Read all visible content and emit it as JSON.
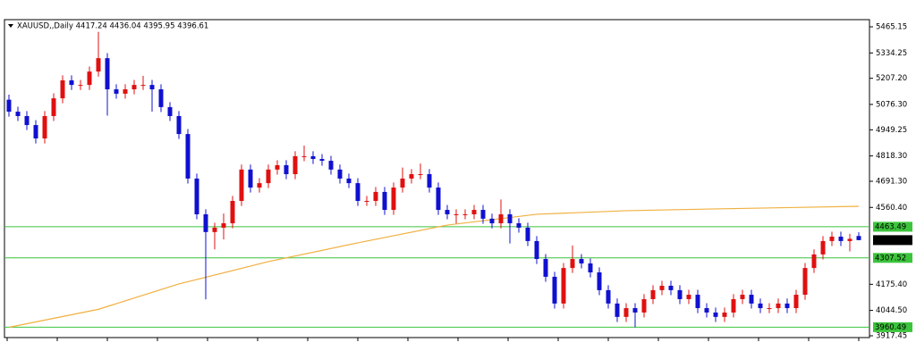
{
  "chart_data": {
    "type": "candlestick",
    "title": "XAUUSD,,Daily  4417.24 4436.04 4395.95 4396.61",
    "up_color": "#e01010",
    "down_color": "#1010d0",
    "open": [
      5100,
      5040,
      5018,
      4973,
      4906,
      5018,
      5107,
      5197,
      5174,
      5174,
      5241,
      5308,
      5152,
      5130,
      5152,
      5174,
      5174,
      5152,
      5063,
      5018,
      4928,
      4705,
      4526,
      4437,
      4459,
      4481,
      4593,
      4750,
      4660,
      4682,
      4750,
      4772,
      4727,
      4817,
      4817,
      4803,
      4794,
      4750,
      4705,
      4682,
      4593,
      4593,
      4638,
      4548,
      4660,
      4705,
      4727,
      4727,
      4660,
      4548,
      4526,
      4526,
      4526,
      4548,
      4504,
      4481,
      4526,
      4481,
      4459,
      4392,
      4302,
      4213,
      4079,
      4257,
      4302,
      4280,
      4235,
      4146,
      4079,
      4012,
      4056,
      4034,
      4101,
      4146,
      4168,
      4146,
      4101,
      4123,
      4056,
      4034,
      4012,
      4034,
      4101,
      4123,
      4079,
      4056,
      4056,
      4079,
      4056,
      4123,
      4257,
      4325,
      4392,
      4414,
      4392,
      4417.24
    ],
    "high": [
      5125,
      5065,
      5043,
      4998,
      5043,
      5132,
      5222,
      5222,
      5199,
      5266,
      5440,
      5333,
      5177,
      5177,
      5199,
      5220,
      5199,
      5177,
      5088,
      5043,
      4953,
      4730,
      4551,
      4484,
      4530,
      4618,
      4775,
      4775,
      4707,
      4775,
      4797,
      4797,
      4842,
      4870,
      4842,
      4828,
      4819,
      4775,
      4730,
      4707,
      4618,
      4663,
      4663,
      4685,
      4760,
      4752,
      4780,
      4752,
      4685,
      4573,
      4551,
      4551,
      4573,
      4573,
      4529,
      4600,
      4551,
      4506,
      4484,
      4417,
      4327,
      4238,
      4282,
      4370,
      4327,
      4305,
      4260,
      4171,
      4104,
      4081,
      4081,
      4126,
      4171,
      4193,
      4193,
      4171,
      4148,
      4148,
      4081,
      4059,
      4059,
      4126,
      4148,
      4148,
      4104,
      4081,
      4104,
      4104,
      4148,
      4282,
      4350,
      4417,
      4439,
      4439,
      4428,
      4436.04
    ],
    "low": [
      5015,
      4993,
      4948,
      4881,
      4881,
      4993,
      5082,
      5149,
      5149,
      5149,
      5216,
      5020,
      5105,
      5105,
      5127,
      5149,
      5040,
      5038,
      4993,
      4903,
      4680,
      4501,
      4100,
      4350,
      4400,
      4456,
      4568,
      4635,
      4635,
      4657,
      4725,
      4702,
      4702,
      4792,
      4778,
      4769,
      4725,
      4680,
      4657,
      4568,
      4568,
      4568,
      4523,
      4523,
      4635,
      4680,
      4702,
      4635,
      4523,
      4501,
      4480,
      4501,
      4501,
      4479,
      4456,
      4456,
      4380,
      4434,
      4367,
      4277,
      4188,
      4054,
      4054,
      4232,
      4255,
      4210,
      4121,
      4054,
      3987,
      3987,
      3960,
      4009,
      4076,
      4121,
      4121,
      4076,
      4076,
      4031,
      4009,
      3987,
      3987,
      4009,
      4076,
      4054,
      4031,
      4031,
      4031,
      4031,
      4031,
      4098,
      4232,
      4300,
      4367,
      4367,
      4340,
      4395.95
    ],
    "close": [
      5040,
      5018,
      4973,
      4906,
      5018,
      5107,
      5197,
      5174,
      5174,
      5241,
      5308,
      5152,
      5130,
      5152,
      5174,
      5174,
      5152,
      5063,
      5018,
      4928,
      4705,
      4526,
      4437,
      4459,
      4481,
      4593,
      4750,
      4660,
      4682,
      4750,
      4772,
      4727,
      4817,
      4817,
      4803,
      4794,
      4750,
      4705,
      4682,
      4593,
      4593,
      4638,
      4548,
      4660,
      4705,
      4727,
      4727,
      4660,
      4548,
      4526,
      4526,
      4526,
      4548,
      4504,
      4481,
      4526,
      4481,
      4459,
      4392,
      4302,
      4213,
      4079,
      4257,
      4302,
      4280,
      4235,
      4146,
      4079,
      4012,
      4056,
      4034,
      4101,
      4146,
      4168,
      4146,
      4101,
      4123,
      4056,
      4034,
      4012,
      4034,
      4101,
      4123,
      4079,
      4056,
      4056,
      4079,
      4056,
      4123,
      4257,
      4325,
      4392,
      4414,
      4392,
      4403,
      4396.61
    ],
    "ma": {
      "color": "#f0b040",
      "x": [
        0,
        10,
        19,
        29,
        39,
        49,
        59,
        69,
        79,
        95
      ],
      "values": [
        3960,
        4050,
        4177,
        4289,
        4383,
        4472,
        4526,
        4544,
        4553,
        4566
      ]
    },
    "levels": [
      {
        "value": 4463.49,
        "label": "4463.49"
      },
      {
        "value": 4307.52,
        "label": "4307.52"
      },
      {
        "value": 3960.49,
        "label": "3960.49"
      }
    ],
    "level_color": "#3cc43c",
    "ylim": [
      3908.5,
      5501
    ],
    "yticks": [
      {
        "value": 5465.15,
        "label": "5465.15"
      },
      {
        "value": 5334.25,
        "label": "5334.25"
      },
      {
        "value": 5207.2,
        "label": "5207.20"
      },
      {
        "value": 5076.3,
        "label": "5076.30"
      },
      {
        "value": 4949.25,
        "label": "4949.25"
      },
      {
        "value": 4818.3,
        "label": "4818.30"
      },
      {
        "value": 4691.3,
        "label": "4691.30"
      },
      {
        "value": 4560.4,
        "label": "4560.40"
      },
      {
        "value": 4175.4,
        "label": "4175.40"
      },
      {
        "value": 4044.5,
        "label": "4044.50"
      },
      {
        "value": 3917.45,
        "label": "3917.45"
      }
    ]
  }
}
